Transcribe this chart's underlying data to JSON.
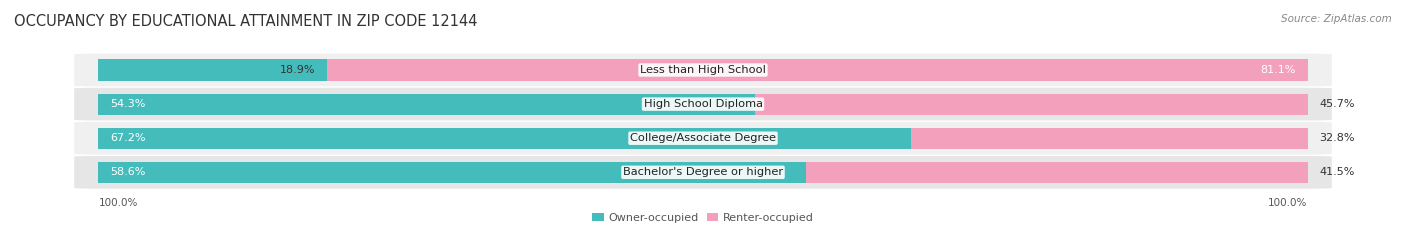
{
  "title": "OCCUPANCY BY EDUCATIONAL ATTAINMENT IN ZIP CODE 12144",
  "source": "Source: ZipAtlas.com",
  "categories": [
    "Less than High School",
    "High School Diploma",
    "College/Associate Degree",
    "Bachelor's Degree or higher"
  ],
  "owner_pct": [
    18.9,
    54.3,
    67.2,
    58.6
  ],
  "renter_pct": [
    81.1,
    45.7,
    32.8,
    41.5
  ],
  "owner_color": "#45BCBC",
  "renter_color": "#F2A0BC",
  "row_bg_even": "#F0F0F0",
  "row_bg_odd": "#E6E6E6",
  "title_fontsize": 10.5,
  "label_fontsize": 8.2,
  "pct_fontsize": 8.0,
  "axis_label_fontsize": 7.5,
  "legend_fontsize": 8.0,
  "source_fontsize": 7.5,
  "figsize": [
    14.06,
    2.33
  ],
  "dpi": 100,
  "axis_label_left": "100.0%",
  "axis_label_right": "100.0%"
}
